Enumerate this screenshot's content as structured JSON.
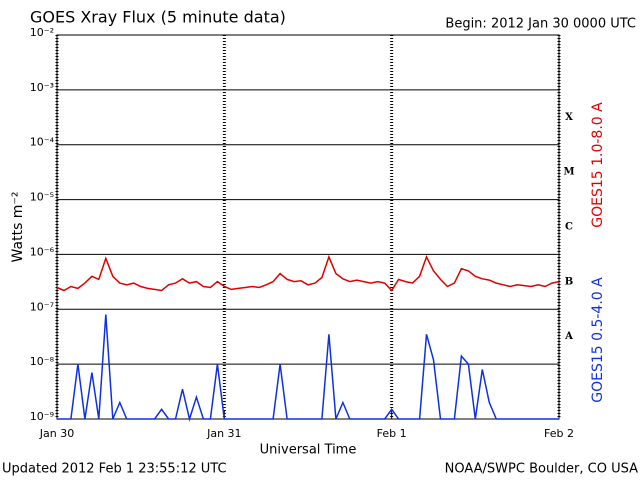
{
  "chart_data": {
    "type": "line",
    "title": "GOES Xray Flux (5 minute data)",
    "subtitle": "Begin:  2012 Jan 30 0000 UTC",
    "x_label": "Universal Time",
    "y_label": "Watts m⁻²",
    "footer_left": "Updated 2012 Feb  1 23:55:12 UTC",
    "footer_right": "NOAA/SWPC Boulder, CO USA",
    "log_scale": true,
    "grid": true,
    "legend": "right",
    "class_labels": [
      "A",
      "B",
      "C",
      "M",
      "X"
    ],
    "x": [
      0,
      1,
      2,
      3,
      4,
      5,
      6,
      7,
      8,
      9,
      10,
      11,
      12,
      13,
      14,
      15,
      16,
      17,
      18,
      19,
      20,
      21,
      22,
      23,
      24,
      25,
      26,
      27,
      28,
      29,
      30,
      31,
      32,
      33,
      34,
      35,
      36,
      37,
      38,
      39,
      40,
      41,
      42,
      43,
      44,
      45,
      46,
      47,
      48,
      49,
      50,
      51,
      52,
      53,
      54,
      55,
      56,
      57,
      58,
      59,
      60,
      61,
      62,
      63,
      64,
      65,
      66,
      67,
      68,
      69,
      70,
      71,
      72
    ],
    "xlim": [
      0,
      72
    ],
    "xticks": [
      {
        "value": 0,
        "label": "Jan 30"
      },
      {
        "value": 24,
        "label": "Jan 31"
      },
      {
        "value": 48,
        "label": "Feb 1"
      },
      {
        "value": 72,
        "label": "Feb 2"
      }
    ],
    "ylim": [
      1e-09,
      0.01
    ],
    "yticks": [
      {
        "value": 1e-09,
        "label": "10⁻⁹"
      },
      {
        "value": 1e-08,
        "label": "10⁻⁸"
      },
      {
        "value": 1e-07,
        "label": "10⁻⁷"
      },
      {
        "value": 1e-06,
        "label": "10⁻⁶"
      },
      {
        "value": 1e-05,
        "label": "10⁻⁵"
      },
      {
        "value": 0.0001,
        "label": "10⁻⁴"
      },
      {
        "value": 0.001,
        "label": "10⁻³"
      },
      {
        "value": 0.01,
        "label": "10⁻²"
      }
    ],
    "series": [
      {
        "name": "GOES15 1.0-8.0 A",
        "color": "#e00000",
        "values": [
          2.5e-07,
          2.2e-07,
          2.6e-07,
          2.4e-07,
          3e-07,
          4e-07,
          3.5e-07,
          8.5e-07,
          4e-07,
          3e-07,
          2.8e-07,
          3e-07,
          2.6e-07,
          2.4e-07,
          2.3e-07,
          2.2e-07,
          2.8e-07,
          3e-07,
          3.6e-07,
          3e-07,
          3.2e-07,
          2.6e-07,
          2.5e-07,
          3.2e-07,
          2.6e-07,
          2.3e-07,
          2.4e-07,
          2.5e-07,
          2.6e-07,
          2.5e-07,
          2.8e-07,
          3.2e-07,
          4.5e-07,
          3.5e-07,
          3.2e-07,
          3.3e-07,
          2.8e-07,
          3e-07,
          3.8e-07,
          9e-07,
          4.5e-07,
          3.6e-07,
          3.2e-07,
          3.4e-07,
          3.2e-07,
          3e-07,
          3.2e-07,
          3e-07,
          2.2e-07,
          3.5e-07,
          3.2e-07,
          3e-07,
          4e-07,
          9e-07,
          5e-07,
          3.5e-07,
          2.6e-07,
          3e-07,
          5.5e-07,
          5e-07,
          4e-07,
          3.6e-07,
          3.4e-07,
          3e-07,
          2.8e-07,
          2.6e-07,
          2.8e-07,
          2.7e-07,
          2.6e-07,
          2.8e-07,
          2.6e-07,
          3e-07,
          3.2e-07
        ]
      },
      {
        "name": "GOES15 0.5-4.0 A",
        "color": "#1030e0",
        "values": [
          1e-09,
          1e-09,
          1e-09,
          1e-08,
          1e-09,
          7e-09,
          1e-09,
          8e-08,
          1e-09,
          2e-09,
          1e-09,
          1e-09,
          1e-09,
          1e-09,
          1e-09,
          1.5e-09,
          1e-09,
          1e-09,
          3.5e-09,
          1e-09,
          2.5e-09,
          1e-09,
          1e-09,
          1e-08,
          1e-09,
          1e-09,
          1e-09,
          1e-09,
          1e-09,
          1e-09,
          1e-09,
          1e-09,
          1e-08,
          1e-09,
          1e-09,
          1e-09,
          1e-09,
          1e-09,
          1e-09,
          3.5e-08,
          1e-09,
          2e-09,
          1e-09,
          1e-09,
          1e-09,
          1e-09,
          1e-09,
          1e-09,
          1.5e-09,
          1e-09,
          1e-09,
          1e-09,
          1e-09,
          3.5e-08,
          1.2e-08,
          1e-09,
          1e-09,
          1e-09,
          1.4e-08,
          1e-08,
          1e-09,
          8e-09,
          2e-09,
          1e-09,
          1e-09,
          1e-09,
          1e-09,
          1e-09,
          1e-09,
          1e-09,
          1e-09,
          1e-09,
          1e-09
        ]
      }
    ]
  }
}
